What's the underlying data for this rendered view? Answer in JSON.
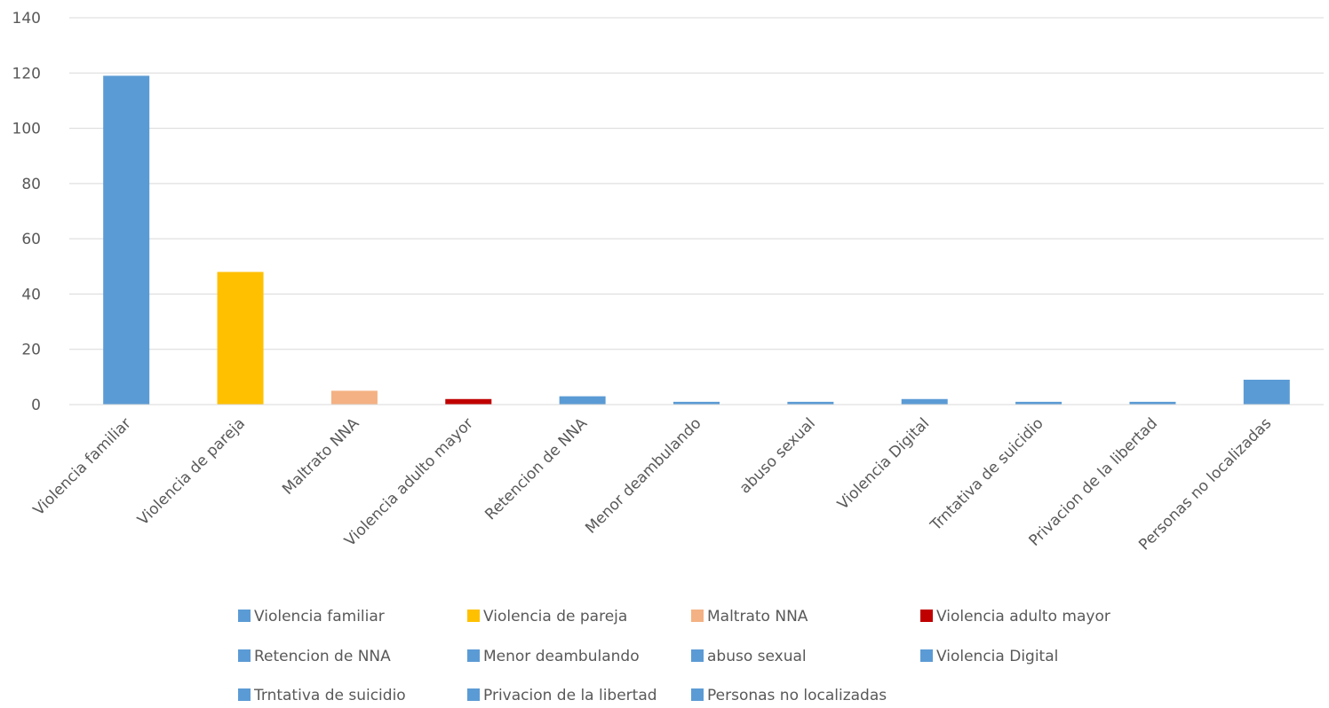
{
  "chart_data": {
    "type": "bar",
    "title": "",
    "xlabel": "",
    "ylabel": "",
    "ylim": [
      0,
      140
    ],
    "yticks": [
      0,
      20,
      40,
      60,
      80,
      100,
      120,
      140
    ],
    "grid": true,
    "legend_position": "bottom",
    "categories": [
      "Violencia familiar",
      "Violencia de pareja",
      "Maltrato NNA",
      "Violencia adulto mayor",
      "Retencion de NNA",
      "Menor deambulando",
      "abuso sexual",
      "Violencia Digital",
      "Trntativa de suicidio",
      "Privacion de la libertad",
      "Personas no localizadas"
    ],
    "values": [
      119,
      48,
      5,
      2,
      3,
      1,
      1,
      2,
      1,
      1,
      9
    ],
    "colors": [
      "#5b9bd5",
      "#ffc000",
      "#f4b183",
      "#c00000",
      "#5b9bd5",
      "#5b9bd5",
      "#5b9bd5",
      "#5b9bd5",
      "#5b9bd5",
      "#5b9bd5",
      "#5b9bd5"
    ],
    "legend": [
      "Violencia familiar",
      "Violencia de pareja",
      "Maltrato NNA",
      "Violencia adulto mayor",
      "Retencion de NNA",
      "Menor deambulando",
      "abuso sexual",
      "Violencia Digital",
      "Trntativa de suicidio",
      "Privacion de la libertad",
      "Personas no localizadas"
    ]
  }
}
